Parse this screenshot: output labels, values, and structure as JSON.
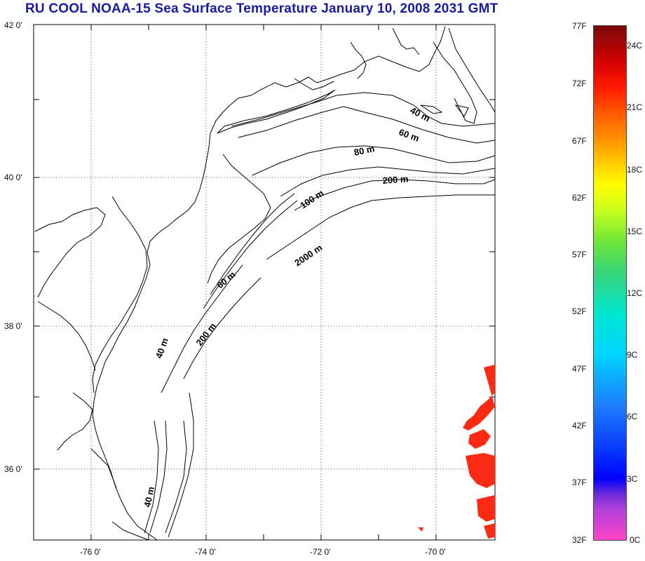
{
  "title": "RU COOL  NOAA-15 Sea Surface Temperature January 10, 2008 2031 GMT",
  "lat_labels": [
    "42 0'",
    "40 0'",
    "38 0'",
    "36 0'"
  ],
  "lon_labels": [
    "-76 0'",
    "-74 0'",
    "-72 0'",
    "-70 0'"
  ],
  "contour_labels": [
    "40 m",
    "60 m",
    "80 m",
    "200 m",
    "100 m",
    "2000 m",
    "60 m",
    "200 m",
    "40 m",
    "40 m"
  ],
  "colorbar": {
    "f_labels": [
      "77F",
      "72F",
      "67F",
      "62F",
      "57F",
      "52F",
      "47F",
      "42F",
      "37F",
      "32F"
    ],
    "c_labels": [
      "24C",
      "21C",
      "18C",
      "15C",
      "12C",
      "9C",
      "6C",
      "3C",
      "0C"
    ]
  },
  "colors": {
    "title": "#1a1aa6",
    "sst_patch": "#ff2a14",
    "land": "#000000"
  }
}
